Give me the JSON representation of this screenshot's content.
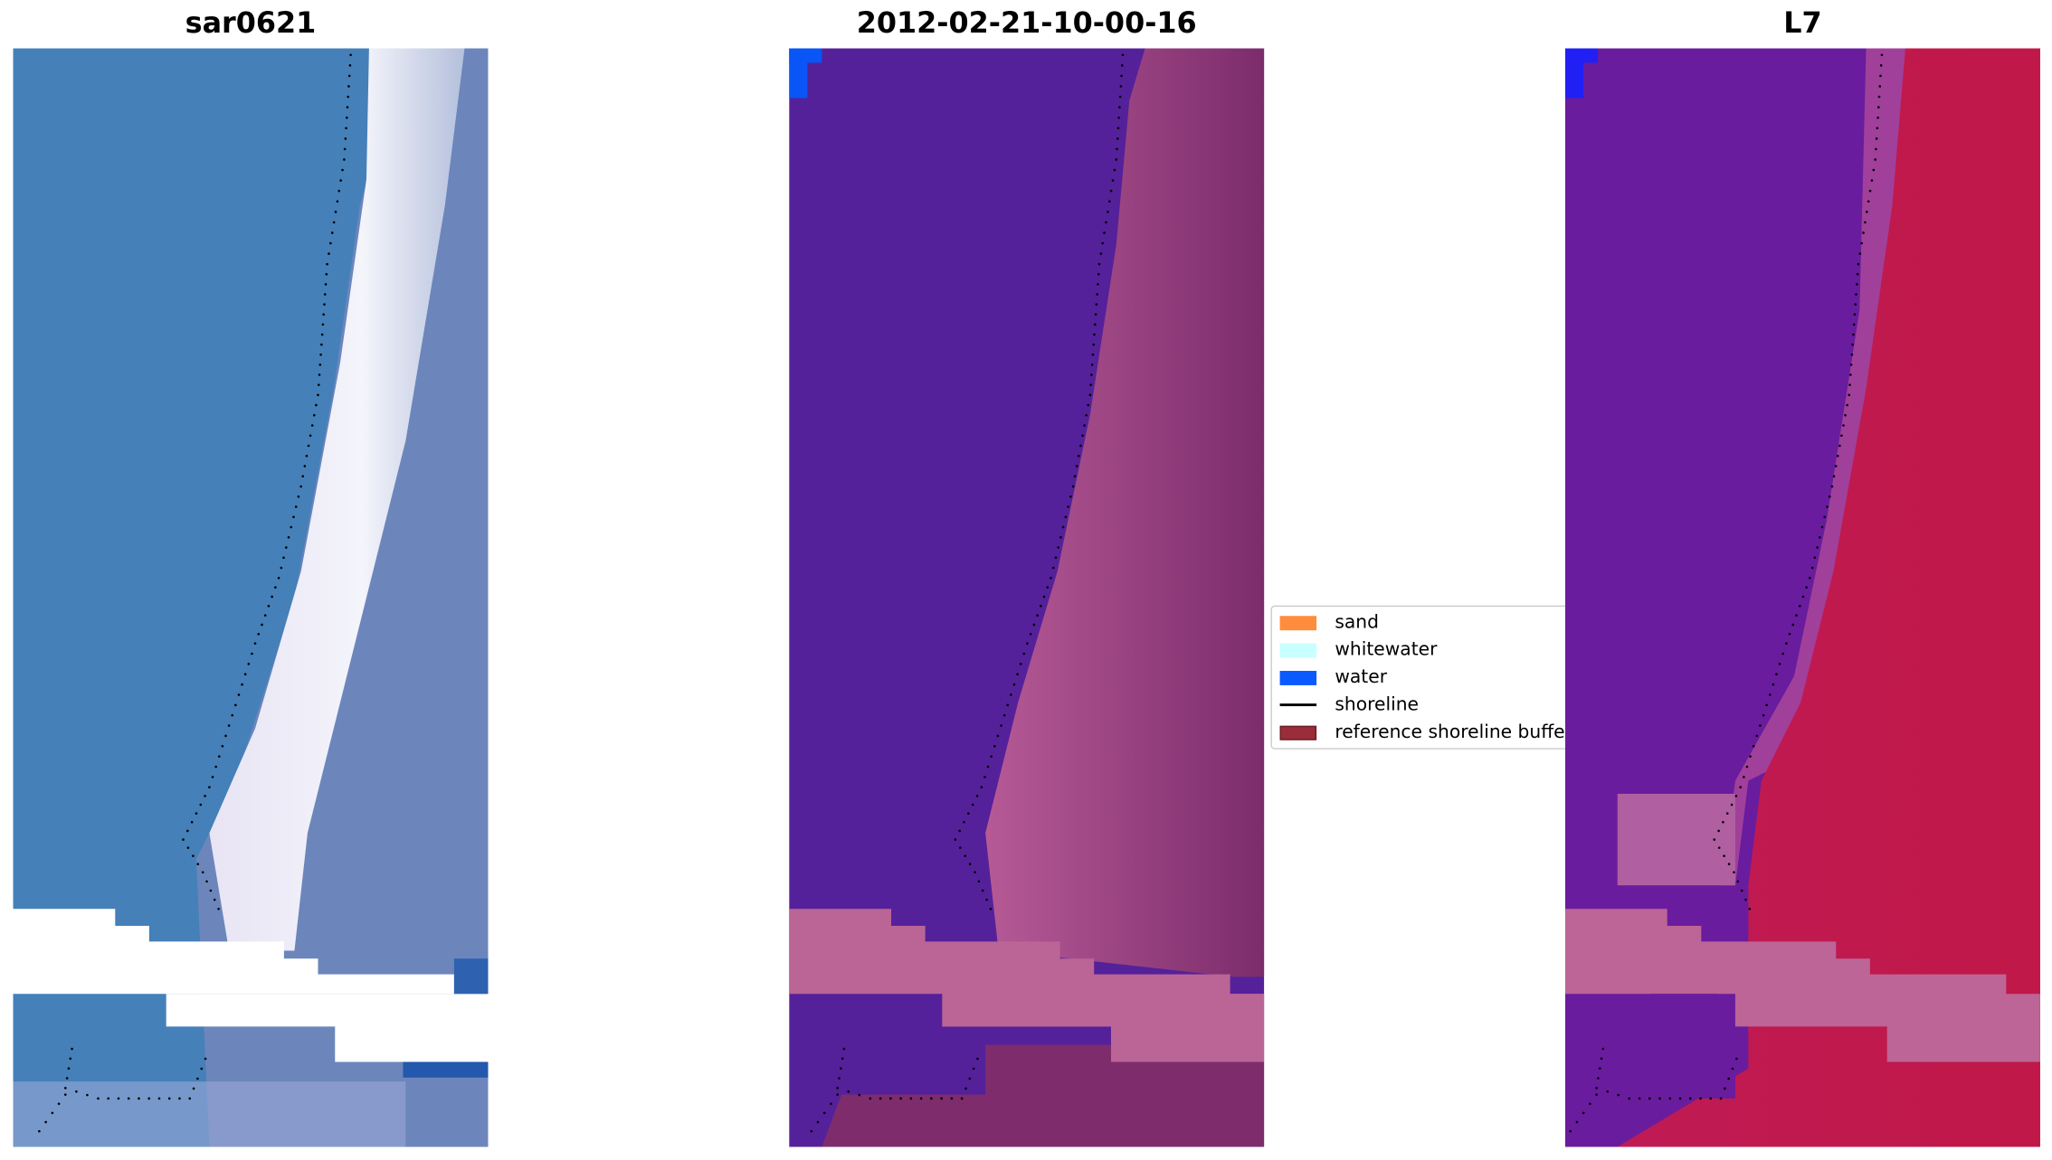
{
  "panels": [
    {
      "title": "sar0621"
    },
    {
      "title": "2012-02-21-10-00-16"
    },
    {
      "title": "L7"
    }
  ],
  "legend": {
    "placement": "center",
    "items": [
      {
        "label": "sand",
        "type": "patch",
        "color": "#ff8c3c"
      },
      {
        "label": "whitewater",
        "type": "patch",
        "color": "#c8ffff"
      },
      {
        "label": "water",
        "type": "patch",
        "color": "#0a5aff"
      },
      {
        "label": "shoreline",
        "type": "line",
        "color": "#000000"
      },
      {
        "label": "reference shoreline buffer",
        "type": "patch",
        "color": "#9b2d3a"
      }
    ]
  },
  "chart_data": {
    "type": "image",
    "axes": "off",
    "subplots": [
      "sar0621",
      "2012-02-21-10-00-16",
      "L7"
    ]
  }
}
